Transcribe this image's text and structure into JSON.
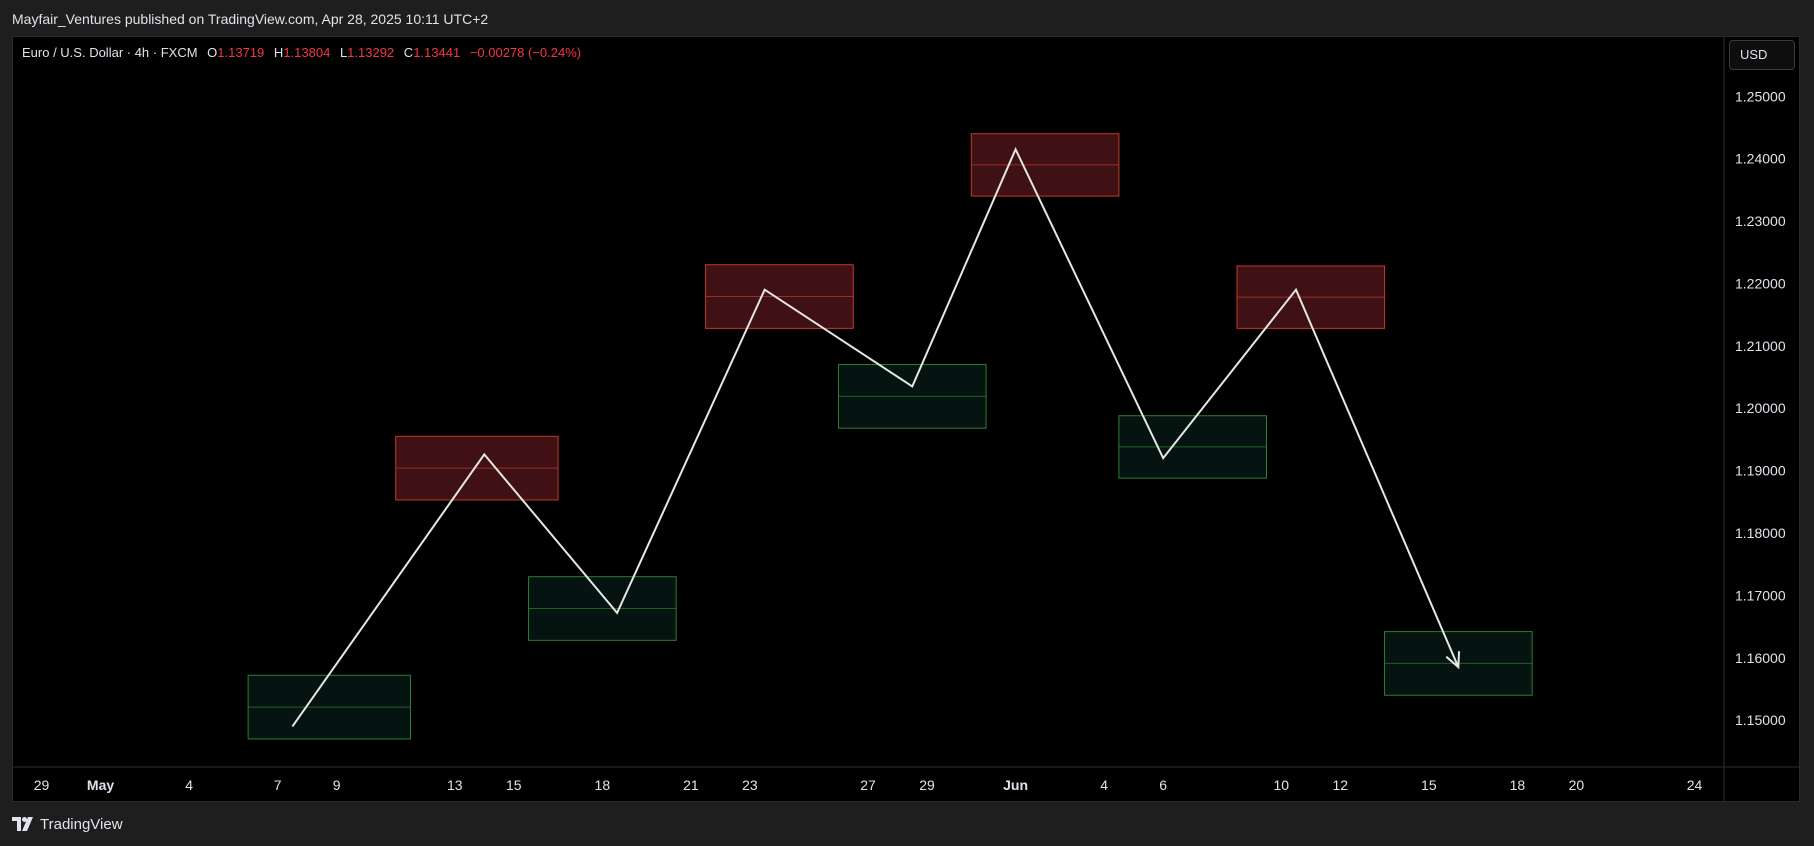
{
  "header": {
    "published": "Mayfair_Ventures published on TradingView.com, Apr 28, 2025 10:11 UTC+2"
  },
  "legend": {
    "symbol": "Euro / U.S. Dollar · 4h · FXCM",
    "open_label": "O",
    "open": "1.13719",
    "high_label": "H",
    "high": "1.13804",
    "low_label": "L",
    "low": "1.13292",
    "close_label": "C",
    "close": "1.13441",
    "change": "−0.00278 (−0.24%)"
  },
  "currency": "USD",
  "footer": {
    "brand": "TradingView"
  },
  "colors": {
    "background": "#000000",
    "supply_fill": "#4a1418",
    "supply_border": "#c0392b",
    "demand_fill": "#051410",
    "demand_border": "#2e7d32",
    "path": "#e6e6e6",
    "down": "#f23645"
  },
  "chart_data": {
    "type": "line",
    "y_axis": {
      "range": [
        1.1425,
        1.2595
      ],
      "ticks": [
        "1.25000",
        "1.24000",
        "1.23000",
        "1.22000",
        "1.21000",
        "1.20000",
        "1.19000",
        "1.18000",
        "1.17000",
        "1.16000",
        "1.15000"
      ]
    },
    "x_axis": {
      "range": [
        "2025-04-28",
        "2025-06-25"
      ],
      "ticks": [
        {
          "date": "2025-04-29",
          "label": "29",
          "month": false
        },
        {
          "date": "2025-05-01",
          "label": "May",
          "month": true
        },
        {
          "date": "2025-05-04",
          "label": "4",
          "month": false
        },
        {
          "date": "2025-05-07",
          "label": "7",
          "month": false
        },
        {
          "date": "2025-05-09",
          "label": "9",
          "month": false
        },
        {
          "date": "2025-05-13",
          "label": "13",
          "month": false
        },
        {
          "date": "2025-05-15",
          "label": "15",
          "month": false
        },
        {
          "date": "2025-05-18",
          "label": "18",
          "month": false
        },
        {
          "date": "2025-05-21",
          "label": "21",
          "month": false
        },
        {
          "date": "2025-05-23",
          "label": "23",
          "month": false
        },
        {
          "date": "2025-05-27",
          "label": "27",
          "month": false
        },
        {
          "date": "2025-05-29",
          "label": "29",
          "month": false
        },
        {
          "date": "2025-06-01",
          "label": "Jun",
          "month": true
        },
        {
          "date": "2025-06-04",
          "label": "4",
          "month": false
        },
        {
          "date": "2025-06-06",
          "label": "6",
          "month": false
        },
        {
          "date": "2025-06-10",
          "label": "10",
          "month": false
        },
        {
          "date": "2025-06-12",
          "label": "12",
          "month": false
        },
        {
          "date": "2025-06-15",
          "label": "15",
          "month": false
        },
        {
          "date": "2025-06-18",
          "label": "18",
          "month": false
        },
        {
          "date": "2025-06-20",
          "label": "20",
          "month": false
        },
        {
          "date": "2025-06-24",
          "label": "24",
          "month": false
        }
      ]
    },
    "projection_path": [
      {
        "x": "2025-05-07T12:00",
        "y": 1.149
      },
      {
        "x": "2025-05-14T00:00",
        "y": 1.1926
      },
      {
        "x": "2025-05-18T12:00",
        "y": 1.1672
      },
      {
        "x": "2025-05-23T12:00",
        "y": 1.219
      },
      {
        "x": "2025-05-28T12:00",
        "y": 1.2035
      },
      {
        "x": "2025-06-01T00:00",
        "y": 1.2415
      },
      {
        "x": "2025-06-06T00:00",
        "y": 1.192
      },
      {
        "x": "2025-06-10T12:00",
        "y": 1.219
      },
      {
        "x": "2025-06-16T00:00",
        "y": 1.1585
      }
    ],
    "zones": [
      {
        "kind": "demand",
        "x0": "2025-05-06",
        "x1": "2025-05-11T12:00",
        "y_top": 1.1572,
        "y_bottom": 1.147
      },
      {
        "kind": "supply",
        "x0": "2025-05-11",
        "x1": "2025-05-16T12:00",
        "y_top": 1.1955,
        "y_bottom": 1.1853
      },
      {
        "kind": "demand",
        "x0": "2025-05-15T12:00",
        "x1": "2025-05-20T12:00",
        "y_top": 1.173,
        "y_bottom": 1.1628
      },
      {
        "kind": "supply",
        "x0": "2025-05-21T12:00",
        "x1": "2025-05-26T12:00",
        "y_top": 1.223,
        "y_bottom": 1.2128
      },
      {
        "kind": "demand",
        "x0": "2025-05-26",
        "x1": "2025-05-31",
        "y_top": 1.207,
        "y_bottom": 1.1968
      },
      {
        "kind": "supply",
        "x0": "2025-05-30T12:00",
        "x1": "2025-06-04T12:00",
        "y_top": 1.244,
        "y_bottom": 1.234
      },
      {
        "kind": "demand",
        "x0": "2025-06-04T12:00",
        "x1": "2025-06-09T12:00",
        "y_top": 1.1988,
        "y_bottom": 1.1888
      },
      {
        "kind": "supply",
        "x0": "2025-06-08T12:00",
        "x1": "2025-06-13T12:00",
        "y_top": 1.2228,
        "y_bottom": 1.2128
      },
      {
        "kind": "demand",
        "x0": "2025-06-13T12:00",
        "x1": "2025-06-18T12:00",
        "y_top": 1.1642,
        "y_bottom": 1.154
      }
    ]
  }
}
